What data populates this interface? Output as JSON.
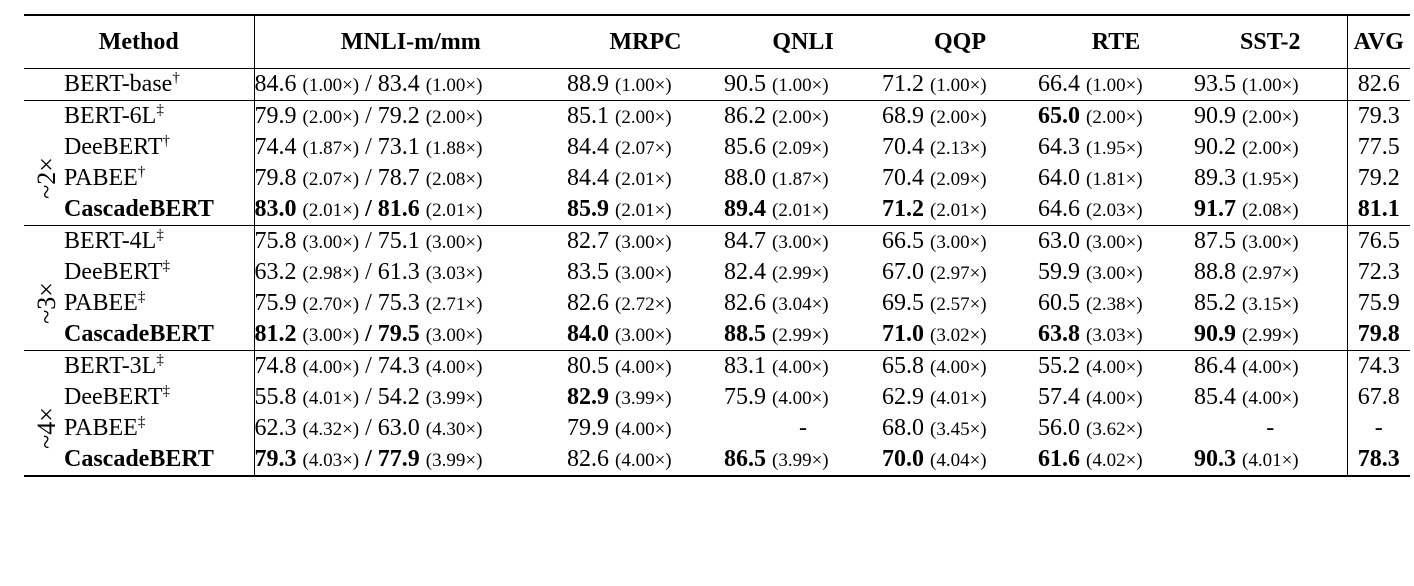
{
  "table": {
    "headers": [
      "Method",
      "MNLI-m/mm",
      "MRPC",
      "QNLI",
      "QQP",
      "RTE",
      "SST-2",
      "AVG"
    ],
    "groups": [
      {
        "speedup": "",
        "rows": [
          {
            "method": "BERT-base",
            "mark": "†",
            "bold_method": false,
            "mnli_m": "84.6",
            "mnli_m_sp": "(1.00×)",
            "mnli_m_b": false,
            "mnli_mm": "83.4",
            "mnli_mm_sp": "(1.00×)",
            "mnli_mm_b": false,
            "cells": [
              {
                "v": "88.9",
                "s": "(1.00×)",
                "b": false
              },
              {
                "v": "90.5",
                "s": "(1.00×)",
                "b": false
              },
              {
                "v": "71.2",
                "s": "(1.00×)",
                "b": false
              },
              {
                "v": "66.4",
                "s": "(1.00×)",
                "b": false
              },
              {
                "v": "93.5",
                "s": "(1.00×)",
                "b": false
              }
            ],
            "avg": "82.6",
            "avg_b": false
          }
        ]
      },
      {
        "speedup": "~2×",
        "rows": [
          {
            "method": "BERT-6L",
            "mark": "‡",
            "bold_method": false,
            "mnli_m": "79.9",
            "mnli_m_sp": "(2.00×)",
            "mnli_m_b": false,
            "mnli_mm": "79.2",
            "mnli_mm_sp": "(2.00×)",
            "mnli_mm_b": false,
            "cells": [
              {
                "v": "85.1",
                "s": "(2.00×)",
                "b": false
              },
              {
                "v": "86.2",
                "s": "(2.00×)",
                "b": false
              },
              {
                "v": "68.9",
                "s": "(2.00×)",
                "b": false
              },
              {
                "v": "65.0",
                "s": "(2.00×)",
                "b": true
              },
              {
                "v": "90.9",
                "s": "(2.00×)",
                "b": false
              }
            ],
            "avg": "79.3",
            "avg_b": false
          },
          {
            "method": "DeeBERT",
            "mark": "†",
            "bold_method": false,
            "mnli_m": "74.4",
            "mnli_m_sp": "(1.87×)",
            "mnli_m_b": false,
            "mnli_mm": "73.1",
            "mnli_mm_sp": "(1.88×)",
            "mnli_mm_b": false,
            "cells": [
              {
                "v": "84.4",
                "s": "(2.07×)",
                "b": false
              },
              {
                "v": "85.6",
                "s": "(2.09×)",
                "b": false
              },
              {
                "v": "70.4",
                "s": "(2.13×)",
                "b": false
              },
              {
                "v": "64.3",
                "s": "(1.95×)",
                "b": false
              },
              {
                "v": "90.2",
                "s": "(2.00×)",
                "b": false
              }
            ],
            "avg": "77.5",
            "avg_b": false
          },
          {
            "method": "PABEE",
            "mark": "†",
            "bold_method": false,
            "mnli_m": "79.8",
            "mnli_m_sp": "(2.07×)",
            "mnli_m_b": false,
            "mnli_mm": "78.7",
            "mnli_mm_sp": "(2.08×)",
            "mnli_mm_b": false,
            "cells": [
              {
                "v": "84.4",
                "s": "(2.01×)",
                "b": false
              },
              {
                "v": "88.0",
                "s": "(1.87×)",
                "b": false
              },
              {
                "v": "70.4",
                "s": "(2.09×)",
                "b": false
              },
              {
                "v": "64.0",
                "s": "(1.81×)",
                "b": false
              },
              {
                "v": "89.3",
                "s": "(1.95×)",
                "b": false
              }
            ],
            "avg": "79.2",
            "avg_b": false
          },
          {
            "method": "CascadeBERT",
            "mark": "",
            "bold_method": true,
            "mnli_m": "83.0",
            "mnli_m_sp": "(2.01×)",
            "mnli_m_b": true,
            "mnli_mm": "81.6",
            "mnli_mm_sp": "(2.01×)",
            "mnli_mm_b": true,
            "cells": [
              {
                "v": "85.9",
                "s": "(2.01×)",
                "b": true
              },
              {
                "v": "89.4",
                "s": "(2.01×)",
                "b": true
              },
              {
                "v": "71.2",
                "s": "(2.01×)",
                "b": true
              },
              {
                "v": "64.6",
                "s": "(2.03×)",
                "b": false
              },
              {
                "v": "91.7",
                "s": "(2.08×)",
                "b": true
              }
            ],
            "avg": "81.1",
            "avg_b": true
          }
        ]
      },
      {
        "speedup": "~3×",
        "rows": [
          {
            "method": "BERT-4L",
            "mark": "‡",
            "bold_method": false,
            "mnli_m": "75.8",
            "mnli_m_sp": "(3.00×)",
            "mnli_m_b": false,
            "mnli_mm": "75.1",
            "mnli_mm_sp": "(3.00×)",
            "mnli_mm_b": false,
            "cells": [
              {
                "v": "82.7",
                "s": "(3.00×)",
                "b": false
              },
              {
                "v": "84.7",
                "s": "(3.00×)",
                "b": false
              },
              {
                "v": "66.5",
                "s": "(3.00×)",
                "b": false
              },
              {
                "v": "63.0",
                "s": "(3.00×)",
                "b": false
              },
              {
                "v": "87.5",
                "s": "(3.00×)",
                "b": false
              }
            ],
            "avg": "76.5",
            "avg_b": false
          },
          {
            "method": "DeeBERT",
            "mark": "‡",
            "bold_method": false,
            "mnli_m": "63.2",
            "mnli_m_sp": "(2.98×)",
            "mnli_m_b": false,
            "mnli_mm": "61.3",
            "mnli_mm_sp": "(3.03×)",
            "mnli_mm_b": false,
            "cells": [
              {
                "v": "83.5",
                "s": "(3.00×)",
                "b": false
              },
              {
                "v": "82.4",
                "s": "(2.99×)",
                "b": false
              },
              {
                "v": "67.0",
                "s": "(2.97×)",
                "b": false
              },
              {
                "v": "59.9",
                "s": "(3.00×)",
                "b": false
              },
              {
                "v": "88.8",
                "s": "(2.97×)",
                "b": false
              }
            ],
            "avg": "72.3",
            "avg_b": false
          },
          {
            "method": "PABEE",
            "mark": "‡",
            "bold_method": false,
            "mnli_m": "75.9",
            "mnli_m_sp": "(2.70×)",
            "mnli_m_b": false,
            "mnli_mm": "75.3",
            "mnli_mm_sp": "(2.71×)",
            "mnli_mm_b": false,
            "cells": [
              {
                "v": "82.6",
                "s": "(2.72×)",
                "b": false
              },
              {
                "v": "82.6",
                "s": "(3.04×)",
                "b": false
              },
              {
                "v": "69.5",
                "s": "(2.57×)",
                "b": false
              },
              {
                "v": "60.5",
                "s": "(2.38×)",
                "b": false
              },
              {
                "v": "85.2",
                "s": "(3.15×)",
                "b": false
              }
            ],
            "avg": "75.9",
            "avg_b": false
          },
          {
            "method": "CascadeBERT",
            "mark": "",
            "bold_method": true,
            "mnli_m": "81.2",
            "mnli_m_sp": "(3.00×)",
            "mnli_m_b": true,
            "mnli_mm": "79.5",
            "mnli_mm_sp": "(3.00×)",
            "mnli_mm_b": true,
            "cells": [
              {
                "v": "84.0",
                "s": "(3.00×)",
                "b": true
              },
              {
                "v": "88.5",
                "s": "(2.99×)",
                "b": true
              },
              {
                "v": "71.0",
                "s": "(3.02×)",
                "b": true
              },
              {
                "v": "63.8",
                "s": "(3.03×)",
                "b": true
              },
              {
                "v": "90.9",
                "s": "(2.99×)",
                "b": true
              }
            ],
            "avg": "79.8",
            "avg_b": true
          }
        ]
      },
      {
        "speedup": "~4×",
        "rows": [
          {
            "method": "BERT-3L",
            "mark": "‡",
            "bold_method": false,
            "mnli_m": "74.8",
            "mnli_m_sp": "(4.00×)",
            "mnli_m_b": false,
            "mnli_mm": "74.3",
            "mnli_mm_sp": "(4.00×)",
            "mnli_mm_b": false,
            "cells": [
              {
                "v": "80.5",
                "s": "(4.00×)",
                "b": false
              },
              {
                "v": "83.1",
                "s": "(4.00×)",
                "b": false
              },
              {
                "v": "65.8",
                "s": "(4.00×)",
                "b": false
              },
              {
                "v": "55.2",
                "s": "(4.00×)",
                "b": false
              },
              {
                "v": "86.4",
                "s": "(4.00×)",
                "b": false
              }
            ],
            "avg": "74.3",
            "avg_b": false
          },
          {
            "method": "DeeBERT",
            "mark": "‡",
            "bold_method": false,
            "mnli_m": "55.8",
            "mnli_m_sp": "(4.01×)",
            "mnli_m_b": false,
            "mnli_mm": "54.2",
            "mnli_mm_sp": "(3.99×)",
            "mnli_mm_b": false,
            "cells": [
              {
                "v": "82.9",
                "s": "(3.99×)",
                "b": true
              },
              {
                "v": "75.9",
                "s": "(4.00×)",
                "b": false
              },
              {
                "v": "62.9",
                "s": "(4.01×)",
                "b": false
              },
              {
                "v": "57.4",
                "s": "(4.00×)",
                "b": false
              },
              {
                "v": "85.4",
                "s": "(4.00×)",
                "b": false
              }
            ],
            "avg": "67.8",
            "avg_b": false
          },
          {
            "method": "PABEE",
            "mark": "‡",
            "bold_method": false,
            "mnli_m": "62.3",
            "mnli_m_sp": "(4.32×)",
            "mnli_m_b": false,
            "mnli_mm": "63.0",
            "mnli_mm_sp": "(4.30×)",
            "mnli_mm_b": false,
            "cells": [
              {
                "v": "79.9",
                "s": "(4.00×)",
                "b": false
              },
              {
                "v": "-",
                "s": "",
                "b": false
              },
              {
                "v": "68.0",
                "s": "(3.45×)",
                "b": false
              },
              {
                "v": "56.0",
                "s": "(3.62×)",
                "b": false
              },
              {
                "v": "-",
                "s": "",
                "b": false
              }
            ],
            "avg": "-",
            "avg_b": false
          },
          {
            "method": "CascadeBERT",
            "mark": "",
            "bold_method": true,
            "mnli_m": "79.3",
            "mnli_m_sp": "(4.03×)",
            "mnli_m_b": true,
            "mnli_mm": "77.9",
            "mnli_mm_sp": "(3.99×)",
            "mnli_mm_b": true,
            "cells": [
              {
                "v": "82.6",
                "s": "(4.00×)",
                "b": false
              },
              {
                "v": "86.5",
                "s": "(3.99×)",
                "b": true
              },
              {
                "v": "70.0",
                "s": "(4.04×)",
                "b": true
              },
              {
                "v": "61.6",
                "s": "(4.02×)",
                "b": true
              },
              {
                "v": "90.3",
                "s": "(4.01×)",
                "b": true
              }
            ],
            "avg": "78.3",
            "avg_b": true
          }
        ]
      }
    ]
  }
}
